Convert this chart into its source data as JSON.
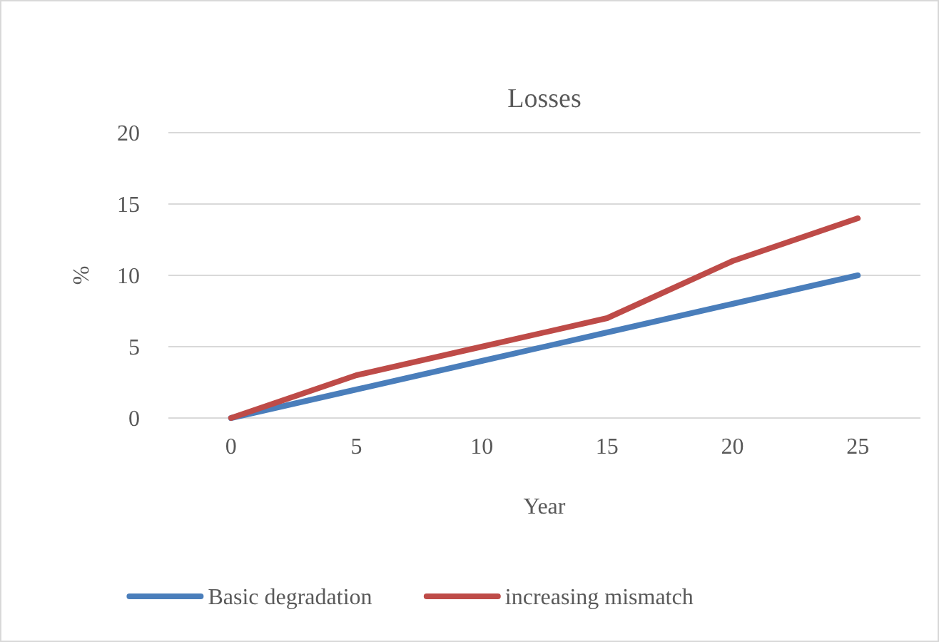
{
  "chart_data": {
    "type": "line",
    "title": "Losses",
    "xlabel": "Year",
    "ylabel": "%",
    "categories": [
      "0",
      "5",
      "10",
      "15",
      "20",
      "25"
    ],
    "series": [
      {
        "name": "Basic degradation",
        "color": "#4a7ebb",
        "values": [
          0,
          2,
          4,
          6,
          8,
          10
        ]
      },
      {
        "name": "increasing mismatch",
        "color": "#be4b48",
        "values": [
          0,
          3,
          5,
          7,
          11,
          14
        ]
      }
    ],
    "ylim": [
      0,
      20
    ],
    "yticks": [
      0,
      5,
      10,
      15,
      20
    ],
    "grid": "y",
    "legend": "bottom",
    "marker": "none",
    "line_style": "solid"
  }
}
